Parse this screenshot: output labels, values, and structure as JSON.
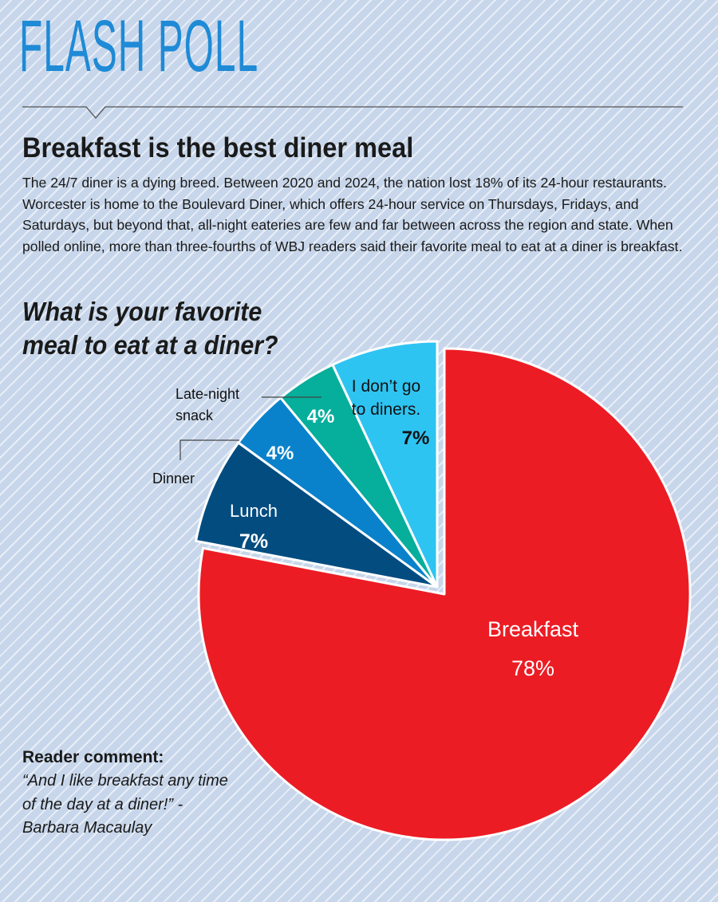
{
  "masthead": "FLASH POLL",
  "headline": "Breakfast is the best diner meal",
  "intro": "The 24/7 diner is a dying breed. Between 2020 and 2024, the nation lost 18% of its 24-hour restaurants. Worcester is home to the Boulevard Diner, which offers 24-hour service on Thursdays, Fridays, and Saturdays, but beyond that, all-night eateries are few and far between across the region and state. When polled online, more than three-fourths of WBJ readers said their favorite meal to eat at a diner is breakfast.",
  "question": [
    "What is your favorite",
    "meal to eat at a diner?"
  ],
  "chart_data": {
    "type": "pie",
    "title": "What is your favorite meal to eat at a diner?",
    "categories": [
      "Breakfast",
      "Lunch",
      "Dinner",
      "Late-night snack",
      "I don’t go to diners."
    ],
    "values": [
      78,
      7,
      4,
      4,
      7
    ],
    "value_labels": [
      "78%",
      "7%",
      "4%",
      "4%",
      "7%"
    ],
    "colors": [
      "#ec1c24",
      "#024c80",
      "#0a82cb",
      "#06ae9c",
      "#2ec4f2"
    ],
    "exploded": "Breakfast"
  },
  "labels": {
    "breakfast_name": "Breakfast",
    "breakfast_pct": "78%",
    "lunch_name": "Lunch",
    "lunch_pct": "7%",
    "dinner_name": "Dinner",
    "dinner_pct": "4%",
    "late_line1": "Late-night",
    "late_line2": "snack",
    "late_pct": "4%",
    "nogo_line1": "I don’t go",
    "nogo_line2": "to diners.",
    "nogo_pct": "7%"
  },
  "comment": {
    "title": "Reader comment:",
    "text": "“And I like breakfast any time of the day at a diner!” - Barbara Macaulay"
  }
}
